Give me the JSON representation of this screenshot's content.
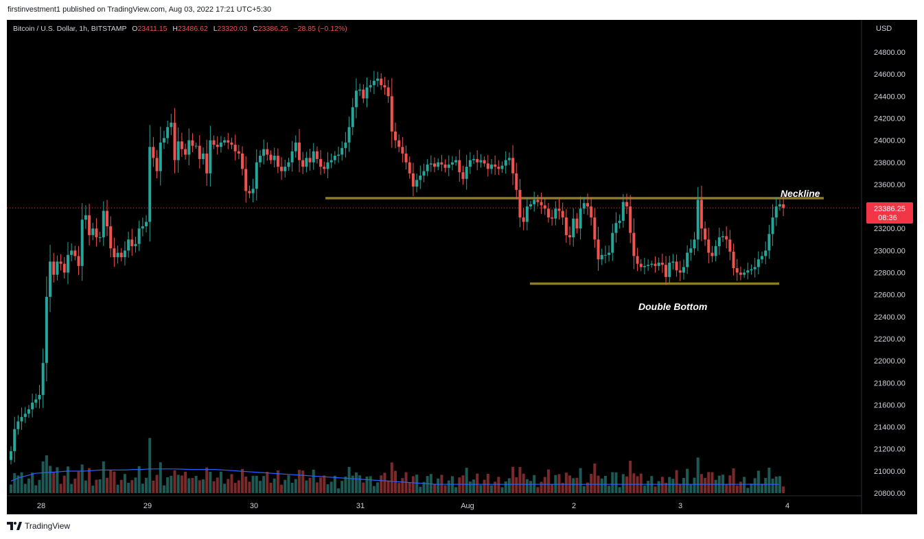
{
  "header": {
    "published_text": "firstinvestment1 published on TradingView.com, Aug 03, 2022 17:21 UTC+5:30"
  },
  "legend": {
    "symbol": "Bitcoin / U.S. Dollar, 1h, BITSTAMP",
    "o_label": "O",
    "o_value": "23411.15",
    "h_label": "H",
    "h_value": "23486.62",
    "l_label": "L",
    "l_value": "23320.03",
    "c_label": "C",
    "c_value": "23386.25",
    "change": "−28.85 (−0.12%)"
  },
  "price_axis": {
    "currency": "USD",
    "ticks": [
      "24800.00",
      "24600.00",
      "24400.00",
      "24200.00",
      "24000.00",
      "23800.00",
      "23600.00",
      "23400.00",
      "23200.00",
      "23000.00",
      "22800.00",
      "22600.00",
      "22400.00",
      "22200.00",
      "22000.00",
      "21800.00",
      "21600.00",
      "21400.00",
      "21200.00",
      "21000.00",
      "20800.00"
    ],
    "last_price": "23386.25",
    "countdown": "08:36"
  },
  "time_axis": {
    "labels": [
      "28",
      "29",
      "30",
      "31",
      "Aug",
      "2",
      "3",
      "4"
    ]
  },
  "annotations": {
    "neckline": "Neckline",
    "double_bottom": "Double Bottom"
  },
  "footer": {
    "brand": "TradingView"
  },
  "colors": {
    "up": "#26a69a",
    "down": "#ef5350",
    "up_volume": "#1e5a55",
    "down_volume": "#7a2a2a",
    "ma": "#2962ff",
    "trendline": "#8d7a2a",
    "last_price": "#f23645"
  },
  "chart_data": {
    "type": "candlestick",
    "title": "Bitcoin / U.S. Dollar, 1h, BITSTAMP",
    "xlabel": "",
    "ylabel": "USD",
    "ylim": [
      20760,
      24980
    ],
    "grid": false,
    "neckline_price": 23475,
    "support_price": 22700,
    "last_price": 23386.25,
    "volume_ma_period": 20,
    "candles_close": [
      21180,
      21380,
      21450,
      21490,
      21520,
      21560,
      21620,
      21650,
      21690,
      21980,
      22580,
      22900,
      22780,
      22900,
      22880,
      22800,
      22960,
      23000,
      22950,
      22860,
      23280,
      23320,
      23140,
      23200,
      23120,
      23120,
      23360,
      23220,
      23020,
      22940,
      22980,
      22940,
      23000,
      23100,
      23040,
      23060,
      23200,
      23220,
      23260,
      23940,
      23840,
      23720,
      23980,
      24020,
      24120,
      24160,
      23820,
      23990,
      23920,
      23870,
      24000,
      23950,
      23950,
      23830,
      23880,
      23700,
      24000,
      23960,
      23940,
      23980,
      24000,
      23980,
      23960,
      23900,
      23880,
      23740,
      23540,
      23520,
      23560,
      23800,
      23860,
      23920,
      23870,
      23820,
      23860,
      23760,
      23720,
      23760,
      23800,
      23900,
      23980,
      23820,
      23760,
      23840,
      23800,
      23900,
      23830,
      23760,
      23740,
      23800,
      23820,
      23860,
      23870,
      23930,
      23980,
      24120,
      24300,
      24450,
      24460,
      24380,
      24480,
      24500,
      24540,
      24560,
      24500,
      24480,
      24400,
      24080,
      24000,
      23940,
      23880,
      23800,
      23700,
      23580,
      23640,
      23680,
      23720,
      23780,
      23790,
      23760,
      23800,
      23780,
      23750,
      23780,
      23800,
      23820,
      23710,
      23650,
      23760,
      23820,
      23830,
      23800,
      23820,
      23790,
      23740,
      23780,
      23760,
      23740,
      23770,
      23820,
      23840,
      23700,
      23550,
      23300,
      23260,
      23400,
      23420,
      23460,
      23440,
      23410,
      23380,
      23300,
      23290,
      23380,
      23360,
      23300,
      23140,
      23120,
      23290,
      23200,
      23380,
      23430,
      23400,
      23300,
      23100,
      22920,
      22960,
      22960,
      22980,
      23160,
      23250,
      23270,
      23440,
      23400,
      23160,
      22950,
      22880,
      22850,
      22860,
      22870,
      22880,
      22860,
      22890,
      22870,
      22760,
      22890,
      22900,
      22820,
      22800,
      22850,
      22980,
      23020,
      23100,
      23460,
      23200,
      23100,
      22980,
      22950,
      23040,
      23120,
      23130,
      23100,
      22990,
      22840,
      22800,
      22780,
      22800,
      22820,
      22830,
      22850,
      22920,
      22950,
      23000,
      23150,
      23300,
      23400,
      23420,
      23386
    ],
    "volume_ma": [
      20910,
      20940,
      20960,
      20980,
      20985,
      20990,
      20995,
      21000,
      21000,
      21000,
      21005,
      21010,
      21010,
      21010,
      21010,
      21015,
      21015,
      21020,
      21020,
      21020,
      21020,
      21018,
      21015,
      21015,
      21015,
      21015,
      21010,
      21005,
      21000,
      20995,
      20990,
      20985,
      20980,
      20975,
      20970,
      20965,
      20960,
      20955,
      20950,
      20945,
      20940,
      20935,
      20930,
      20925,
      20920,
      20915,
      20910,
      20905,
      20900,
      20895,
      20890,
      20885,
      20880,
      20880,
      20880,
      20880,
      20880,
      20880,
      20880,
      20880,
      20880,
      20880,
      20880,
      20880,
      20880,
      20880,
      20880,
      20880,
      20880,
      20880,
      20880,
      20880,
      20880,
      20880,
      20880,
      20880,
      20880,
      20880,
      20880,
      20880,
      20880,
      20880,
      20880,
      20880,
      20880,
      20880,
      20880,
      20880,
      20880,
      20880,
      20880,
      20880,
      20880,
      20880,
      20880
    ]
  }
}
